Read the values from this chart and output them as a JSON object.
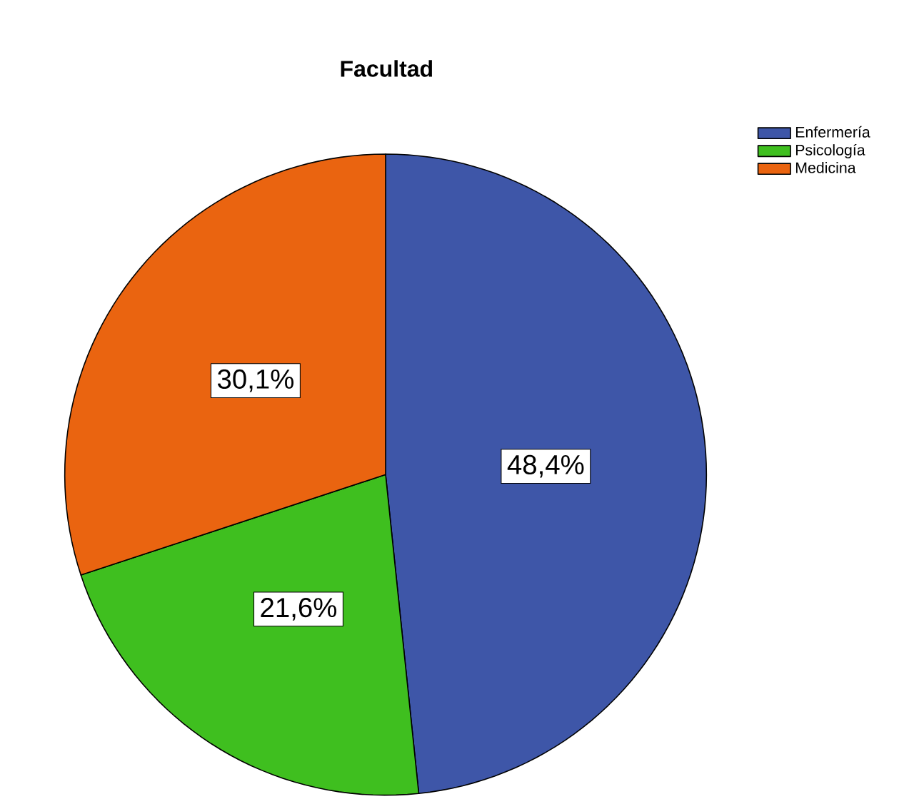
{
  "chart_data": {
    "type": "pie",
    "title": "Facultad",
    "categories": [
      "Enfermería",
      "Psicología",
      "Medicina"
    ],
    "values": [
      48.4,
      21.6,
      30.1
    ],
    "value_labels": [
      "48,4%",
      "21,6%",
      "30,1%"
    ],
    "colors": [
      "#3e56a8",
      "#3fbf1f",
      "#ea6410"
    ],
    "legend": "top right"
  }
}
